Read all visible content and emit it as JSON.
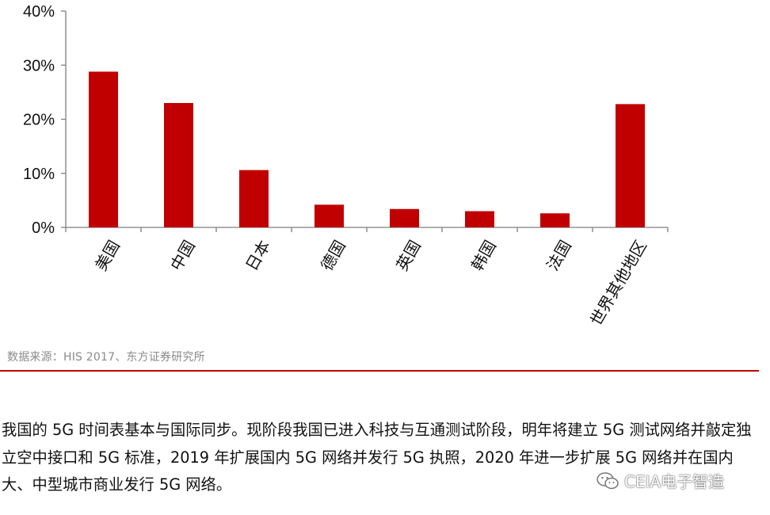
{
  "chart_data": {
    "type": "bar",
    "categories": [
      "美国",
      "中国",
      "日本",
      "德国",
      "英国",
      "韩国",
      "法国",
      "世界其他地区"
    ],
    "values": [
      28.8,
      23.0,
      10.6,
      4.2,
      3.4,
      3.0,
      2.6,
      22.8
    ],
    "unit": "%",
    "ylim": [
      0,
      40
    ],
    "yticks": [
      0,
      10,
      20,
      30,
      40
    ],
    "ytick_labels": [
      "0%",
      "10%",
      "20%",
      "30%",
      "40%"
    ],
    "title": "",
    "xlabel": "",
    "ylabel": "",
    "bar_color": "#c00000",
    "grid": false,
    "legend": "none"
  },
  "source": "数据来源：HIS 2017、东方证券研究所",
  "paragraph": "我国的 5G 时间表基本与国际同步。现阶段我国已进入科技与互通测试阶段，明年将建立 5G 测试网络并敲定独立空中接口和 5G 标准，2019 年扩展国内 5G 网络并发行 5G 执照，2020 年进一步扩展 5G 网络并在国内大、中型城市商业发行 5G 网络。",
  "watermark": {
    "text": "CEIA电子智造",
    "icon": "wechat-icon"
  },
  "colors": {
    "accent": "#c00000",
    "source_text": "#8a8a8a"
  }
}
